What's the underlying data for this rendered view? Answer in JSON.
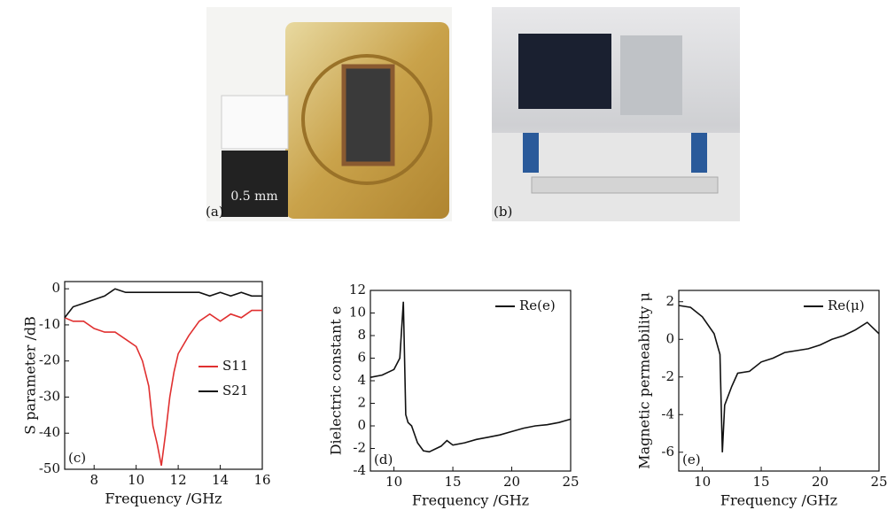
{
  "photos": [
    {
      "label": "(a)",
      "scale_label": "0.5 mm"
    },
    {
      "label": "(b)"
    }
  ],
  "chart_data": [
    {
      "type": "line",
      "panel": "(c)",
      "xlabel": "Frequency /GHz",
      "ylabel": "S parameter /dB",
      "xlim": [
        6.6,
        16
      ],
      "xticks": [
        8,
        10,
        12,
        14,
        16
      ],
      "ylim": [
        -50,
        2
      ],
      "yticks": [
        0,
        -10,
        -20,
        -30,
        -40,
        -50
      ],
      "legend": "right",
      "x": [
        6.6,
        7,
        7.5,
        8,
        8.5,
        9,
        9.5,
        10,
        10.3,
        10.6,
        10.8,
        11,
        11.2,
        11.4,
        11.6,
        11.8,
        12,
        12.5,
        13,
        13.5,
        14,
        14.5,
        15,
        15.5,
        16
      ],
      "series": [
        {
          "name": "S11",
          "color": "#e03030",
          "values": [
            -8,
            -9,
            -9,
            -11,
            -12,
            -12,
            -14,
            -16,
            -20,
            -27,
            -38,
            -43,
            -49,
            -40,
            -30,
            -23,
            -18,
            -13,
            -9,
            -7,
            -9,
            -7,
            -8,
            -6,
            -6
          ]
        },
        {
          "name": "S21",
          "color": "#111111",
          "values": [
            -8,
            -5,
            -4,
            -3,
            -2,
            0,
            -1,
            -1,
            -1,
            -1,
            -1,
            -1,
            -1,
            -1,
            -1,
            -1,
            -1,
            -1,
            -1,
            -2,
            -1,
            -2,
            -1,
            -2,
            -2
          ]
        }
      ]
    },
    {
      "type": "line",
      "panel": "(d)",
      "xlabel": "Frequency /GHz",
      "ylabel": "Dielectric constant e",
      "xlim": [
        8,
        25
      ],
      "xticks": [
        10,
        15,
        20,
        25
      ],
      "ylim": [
        -4,
        12
      ],
      "yticks": [
        -4,
        -2,
        0,
        2,
        4,
        6,
        8,
        10,
        12
      ],
      "legend": "upper right",
      "x": [
        8,
        9,
        10,
        10.5,
        10.8,
        11,
        11.2,
        11.5,
        12,
        12.5,
        13,
        14,
        14.5,
        15,
        16,
        17,
        18,
        19,
        20,
        21,
        22,
        23,
        24,
        25
      ],
      "series": [
        {
          "name": "Re(e)",
          "color": "#111111",
          "values": [
            4.3,
            4.5,
            5,
            6,
            11,
            1,
            0.3,
            0,
            -1.5,
            -2.2,
            -2.3,
            -1.8,
            -1.3,
            -1.7,
            -1.5,
            -1.2,
            -1,
            -0.8,
            -0.5,
            -0.2,
            0,
            0.1,
            0.3,
            0.6
          ]
        }
      ]
    },
    {
      "type": "line",
      "panel": "(e)",
      "xlabel": "Frequency /GHz",
      "ylabel": "Magnetic permeability μ",
      "xlim": [
        8,
        25
      ],
      "xticks": [
        10,
        15,
        20,
        25
      ],
      "ylim": [
        -7,
        2.6
      ],
      "yticks": [
        2,
        0,
        -2,
        -4,
        -6
      ],
      "legend": "upper right",
      "x": [
        8,
        9,
        10,
        11,
        11.5,
        11.7,
        11.9,
        12.5,
        13,
        14,
        15,
        16,
        17,
        18,
        19,
        20,
        21,
        22,
        23,
        24,
        25
      ],
      "series": [
        {
          "name": "Re(μ)",
          "color": "#111111",
          "values": [
            1.8,
            1.7,
            1.2,
            0.3,
            -0.8,
            -6,
            -3.5,
            -2.5,
            -1.8,
            -1.7,
            -1.2,
            -1,
            -0.7,
            -0.6,
            -0.5,
            -0.3,
            0,
            0.2,
            0.5,
            0.9,
            0.3
          ]
        }
      ]
    }
  ]
}
